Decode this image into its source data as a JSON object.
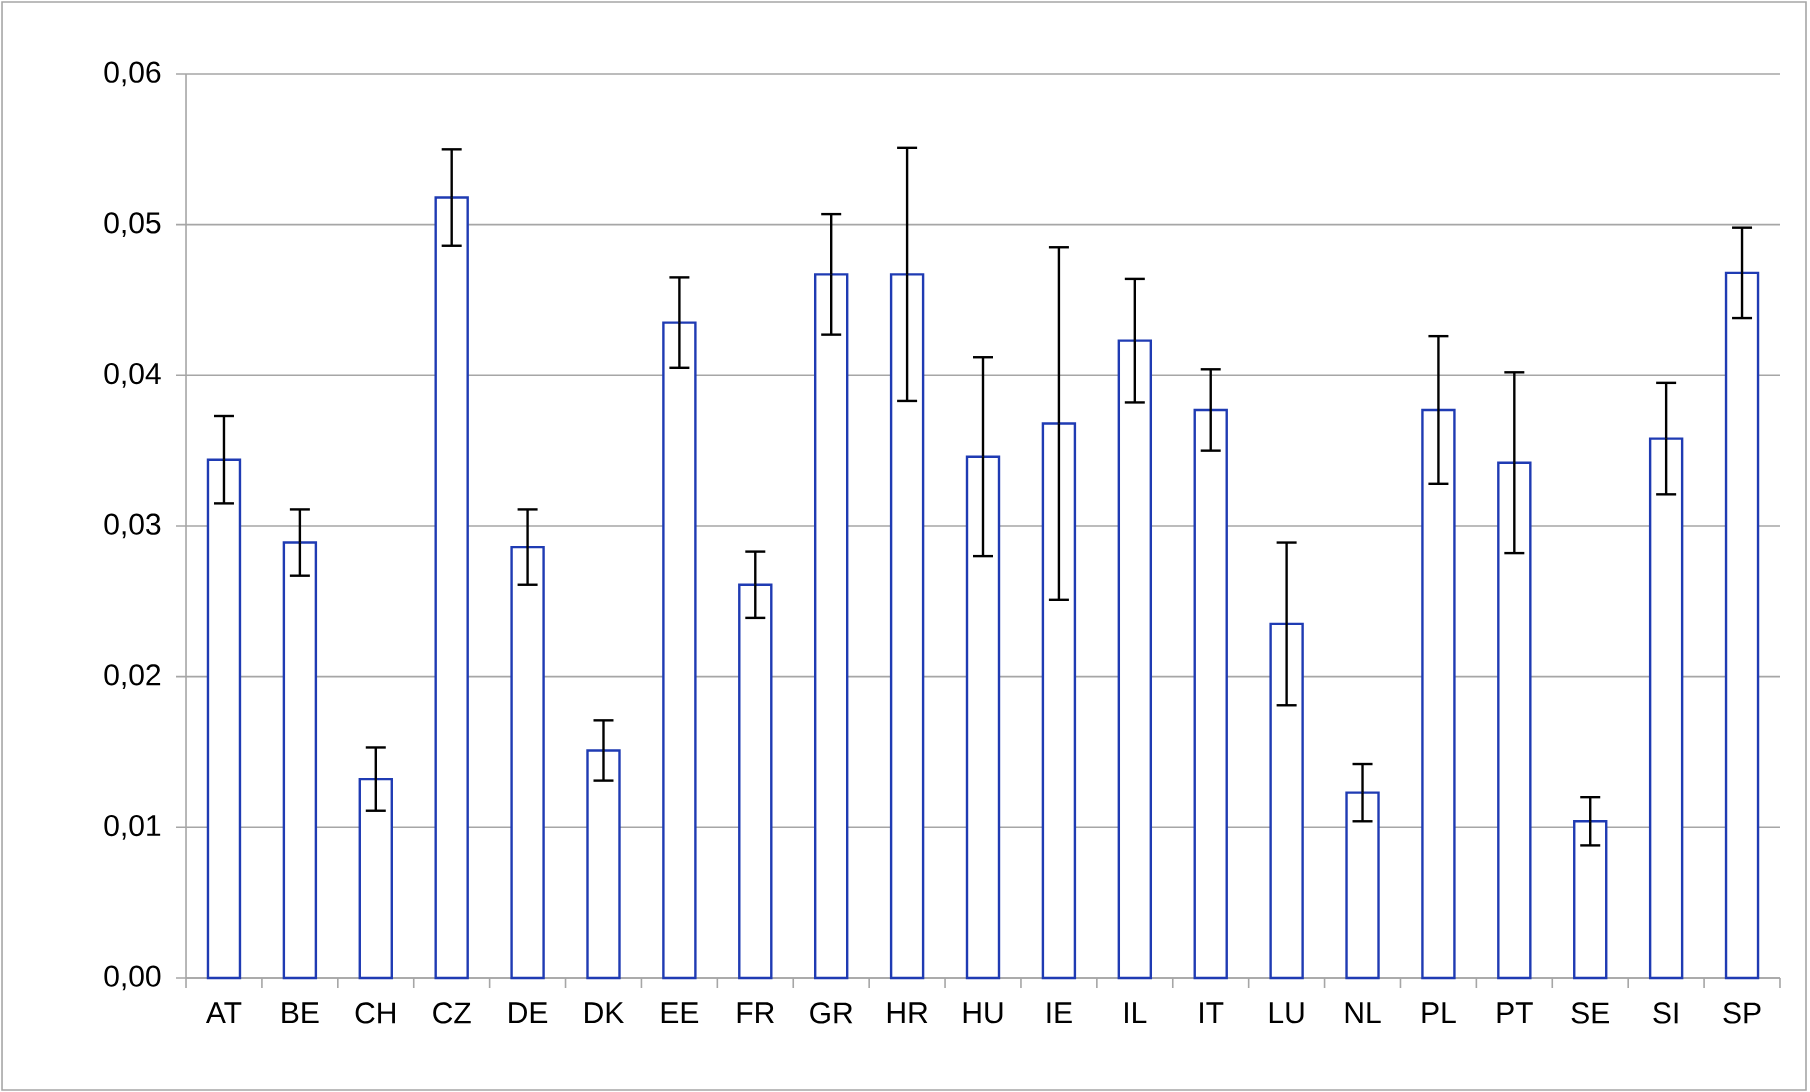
{
  "chart_data": {
    "type": "bar",
    "categories": [
      "AT",
      "BE",
      "CH",
      "CZ",
      "DE",
      "DK",
      "EE",
      "FR",
      "GR",
      "HR",
      "HU",
      "IE",
      "IL",
      "IT",
      "LU",
      "NL",
      "PL",
      "PT",
      "SE",
      "SI",
      "SP"
    ],
    "values": [
      0.0344,
      0.0289,
      0.0132,
      0.0518,
      0.0286,
      0.0151,
      0.0435,
      0.0261,
      0.0467,
      0.0467,
      0.0346,
      0.0368,
      0.0423,
      0.0377,
      0.0235,
      0.0123,
      0.0377,
      0.0342,
      0.0104,
      0.0358,
      0.0468
    ],
    "errors": [
      0.0029,
      0.0022,
      0.0021,
      0.0032,
      0.0025,
      0.002,
      0.003,
      0.0022,
      0.004,
      0.0084,
      0.0066,
      0.0117,
      0.0041,
      0.0027,
      0.0054,
      0.0019,
      0.0049,
      0.006,
      0.0016,
      0.0037,
      0.003
    ],
    "color": "#1f3bb3",
    "ylim": [
      0,
      0.06
    ],
    "yticks": [
      {
        "value": 0,
        "label": "0,00"
      },
      {
        "value": 0.01,
        "label": "0,01"
      },
      {
        "value": 0.02,
        "label": "0,02"
      },
      {
        "value": 0.03,
        "label": "0,03"
      },
      {
        "value": 0.04,
        "label": "0,04"
      },
      {
        "value": 0.05,
        "label": "0,05"
      },
      {
        "value": 0.06,
        "label": "0,06"
      }
    ],
    "grid": "y"
  }
}
